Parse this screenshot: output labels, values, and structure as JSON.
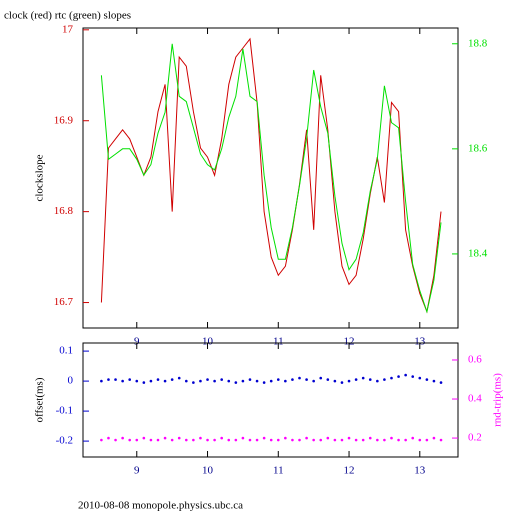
{
  "chart_data": [
    {
      "type": "line",
      "title": "clock (red) rtc (green) slopes",
      "ylabel": "clockslope",
      "x": [
        8.5,
        8.6,
        8.7,
        8.8,
        8.9,
        9.0,
        9.1,
        9.2,
        9.3,
        9.4,
        9.5,
        9.6,
        9.7,
        9.8,
        9.9,
        10.0,
        10.1,
        10.2,
        10.3,
        10.4,
        10.5,
        10.6,
        10.7,
        10.8,
        10.9,
        11.0,
        11.1,
        11.2,
        11.3,
        11.4,
        11.5,
        11.6,
        11.7,
        11.8,
        11.9,
        12.0,
        12.1,
        12.2,
        12.3,
        12.4,
        12.5,
        12.6,
        12.7,
        12.8,
        12.9,
        13.0,
        13.1,
        13.2,
        13.3
      ],
      "xlim": [
        8.24,
        13.54
      ],
      "xticks": [
        9,
        10,
        11,
        12,
        13
      ],
      "ylim": [
        16.672,
        17.002
      ],
      "yticks": [
        16.7,
        16.8,
        16.9,
        17
      ],
      "y2lim": [
        18.259,
        18.83
      ],
      "y2ticks": [
        18.4,
        18.6,
        18.8
      ],
      "series": [
        {
          "color": "#d00000",
          "values": [
            16.7,
            16.87,
            16.88,
            16.89,
            16.88,
            16.86,
            16.84,
            16.86,
            16.91,
            16.94,
            16.8,
            16.97,
            16.96,
            16.91,
            16.87,
            16.86,
            16.84,
            16.88,
            16.94,
            16.97,
            16.98,
            16.99,
            16.92,
            16.8,
            16.75,
            16.73,
            16.74,
            16.78,
            16.83,
            16.89,
            16.78,
            16.95,
            16.89,
            16.8,
            16.74,
            16.72,
            16.73,
            16.77,
            16.82,
            16.86,
            16.81,
            16.92,
            16.91,
            16.78,
            16.74,
            16.71,
            16.69,
            16.73,
            16.8
          ]
        },
        {
          "color": "#00e000",
          "axis": "y2",
          "values": [
            18.74,
            18.58,
            18.59,
            18.6,
            18.6,
            18.58,
            18.55,
            18.57,
            18.63,
            18.67,
            18.8,
            18.7,
            18.69,
            18.64,
            18.59,
            18.57,
            18.56,
            18.6,
            18.66,
            18.7,
            18.79,
            18.7,
            18.69,
            18.55,
            18.45,
            18.39,
            18.39,
            18.45,
            18.53,
            18.62,
            18.75,
            18.68,
            18.63,
            18.51,
            18.42,
            18.37,
            18.39,
            18.44,
            18.52,
            18.58,
            18.72,
            18.65,
            18.64,
            18.5,
            18.38,
            18.33,
            18.29,
            18.35,
            18.46
          ]
        }
      ]
    },
    {
      "type": "scatter",
      "ylabel": "offset(ms)",
      "y2label": "rnd-trip(ms)",
      "x": [
        8.5,
        8.6,
        8.7,
        8.8,
        8.9,
        9.0,
        9.1,
        9.2,
        9.3,
        9.4,
        9.5,
        9.6,
        9.7,
        9.8,
        9.9,
        10.0,
        10.1,
        10.2,
        10.3,
        10.4,
        10.5,
        10.6,
        10.7,
        10.8,
        10.9,
        11.0,
        11.1,
        11.2,
        11.3,
        11.4,
        11.5,
        11.6,
        11.7,
        11.8,
        11.9,
        12.0,
        12.1,
        12.2,
        12.3,
        12.4,
        12.5,
        12.6,
        12.7,
        12.8,
        12.9,
        13.0,
        13.1,
        13.2,
        13.3
      ],
      "xlim": [
        8.24,
        13.54
      ],
      "xticks": [
        9,
        10,
        11,
        12,
        13
      ],
      "ylim": [
        -0.253,
        0.127
      ],
      "yticks": [
        -0.2,
        -0.1,
        0,
        0.1
      ],
      "y2lim": [
        0.103,
        0.687
      ],
      "y2ticks": [
        0.2,
        0.4,
        0.6
      ],
      "series": [
        {
          "color": "#0000d0",
          "values": [
            0.0,
            0.005,
            0.005,
            0.0,
            0.005,
            0.0,
            -0.005,
            0.0,
            0.005,
            0.0,
            0.005,
            0.01,
            0.0,
            -0.005,
            0.0,
            0.005,
            0.0,
            0.005,
            0.0,
            -0.005,
            0.0,
            0.005,
            0.0,
            -0.005,
            0.0,
            0.005,
            0.0,
            0.005,
            0.01,
            0.005,
            0.0,
            0.01,
            0.005,
            0.0,
            -0.005,
            0.0,
            0.005,
            0.01,
            0.005,
            0.0,
            0.005,
            0.01,
            0.015,
            0.02,
            0.015,
            0.01,
            0.005,
            0.0,
            -0.005
          ]
        },
        {
          "color": "#ff00ff",
          "axis": "y2",
          "values": [
            0.19,
            0.2,
            0.19,
            0.2,
            0.19,
            0.19,
            0.2,
            0.19,
            0.19,
            0.2,
            0.19,
            0.2,
            0.19,
            0.19,
            0.2,
            0.19,
            0.19,
            0.2,
            0.19,
            0.19,
            0.2,
            0.19,
            0.19,
            0.2,
            0.19,
            0.19,
            0.2,
            0.19,
            0.19,
            0.2,
            0.19,
            0.19,
            0.2,
            0.19,
            0.19,
            0.2,
            0.19,
            0.19,
            0.2,
            0.19,
            0.19,
            0.2,
            0.19,
            0.19,
            0.2,
            0.19,
            0.19,
            0.2,
            0.19
          ]
        }
      ]
    }
  ],
  "footer": "2010-08-08 monopole.physics.ubc.ca"
}
